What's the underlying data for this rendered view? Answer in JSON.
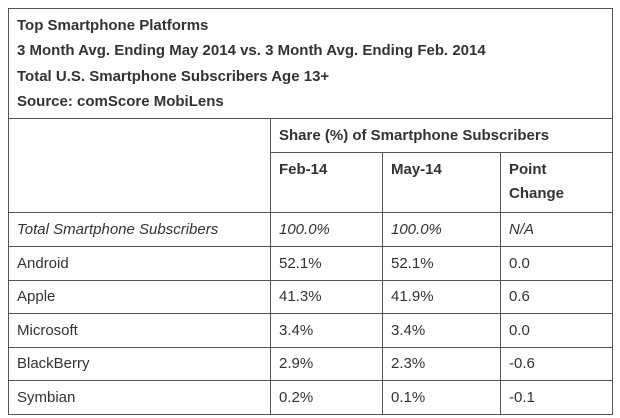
{
  "header": {
    "lines": [
      "Top Smartphone Platforms",
      "3 Month Avg. Ending May 2014 vs. 3 Month Avg. Ending Feb. 2014",
      "Total U.S. Smartphone Subscribers Age 13+",
      "Source: comScore MobiLens"
    ]
  },
  "group_header": "Share (%) of Smartphone Subscribers",
  "columns": {
    "feb": "Feb-14",
    "may": "May-14",
    "change_line1": "Point",
    "change_line2": "Change"
  },
  "total_row": {
    "label": "Total Smartphone Subscribers",
    "feb": "100.0%",
    "may": "100.0%",
    "change": "N/A"
  },
  "rows": [
    {
      "platform": "Android",
      "feb": "52.1%",
      "may": "52.1%",
      "change": "0.0"
    },
    {
      "platform": "Apple",
      "feb": "41.3%",
      "may": "41.9%",
      "change": "0.6"
    },
    {
      "platform": "Microsoft",
      "feb": "3.4%",
      "may": "3.4%",
      "change": "0.0"
    },
    {
      "platform": "BlackBerry",
      "feb": "2.9%",
      "may": "2.3%",
      "change": "-0.6"
    },
    {
      "platform": "Symbian",
      "feb": "0.2%",
      "may": "0.1%",
      "change": "-0.1"
    }
  ]
}
